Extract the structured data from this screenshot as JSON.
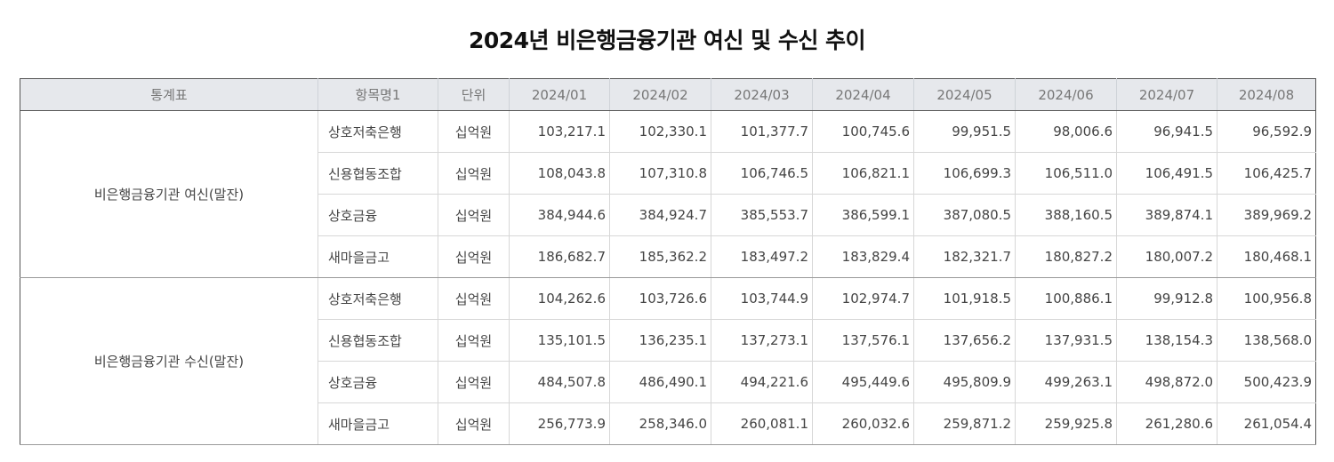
{
  "title": "2024년 비은행금융기관 여신 및 수신 추이",
  "headers": [
    "통계표",
    "항목명1",
    "단위",
    "2024/01",
    "2024/02",
    "2024/03",
    "2024/04",
    "2024/05",
    "2024/06",
    "2024/07",
    "2024/08"
  ],
  "groups": [
    {
      "label": "비은행금융기관 여신(말잔)",
      "rows": [
        {
          "item": "상호저축은행",
          "unit": "십억원",
          "values": [
            "103,217.1",
            "102,330.1",
            "101,377.7",
            "100,745.6",
            "99,951.5",
            "98,006.6",
            "96,941.5",
            "96,592.9"
          ]
        },
        {
          "item": "신용협동조합",
          "unit": "십억원",
          "values": [
            "108,043.8",
            "107,310.8",
            "106,746.5",
            "106,821.1",
            "106,699.3",
            "106,511.0",
            "106,491.5",
            "106,425.7"
          ]
        },
        {
          "item": "상호금융",
          "unit": "십억원",
          "values": [
            "384,944.6",
            "384,924.7",
            "385,553.7",
            "386,599.1",
            "387,080.5",
            "388,160.5",
            "389,874.1",
            "389,969.2"
          ]
        },
        {
          "item": "새마을금고",
          "unit": "십억원",
          "values": [
            "186,682.7",
            "185,362.2",
            "183,497.2",
            "183,829.4",
            "182,321.7",
            "180,827.2",
            "180,007.2",
            "180,468.1"
          ]
        }
      ]
    },
    {
      "label": "비은행금융기관 수신(말잔)",
      "rows": [
        {
          "item": "상호저축은행",
          "unit": "십억원",
          "values": [
            "104,262.6",
            "103,726.6",
            "103,744.9",
            "102,974.7",
            "101,918.5",
            "100,886.1",
            "99,912.8",
            "100,956.8"
          ]
        },
        {
          "item": "신용협동조합",
          "unit": "십억원",
          "values": [
            "135,101.5",
            "136,235.1",
            "137,273.1",
            "137,576.1",
            "137,656.2",
            "137,931.5",
            "138,154.3",
            "138,568.0"
          ]
        },
        {
          "item": "상호금융",
          "unit": "십억원",
          "values": [
            "484,507.8",
            "486,490.1",
            "494,221.6",
            "495,449.6",
            "495,809.9",
            "499,263.1",
            "498,872.0",
            "500,423.9"
          ]
        },
        {
          "item": "새마을금고",
          "unit": "십억원",
          "values": [
            "256,773.9",
            "258,346.0",
            "260,081.1",
            "260,032.6",
            "259,871.2",
            "259,925.8",
            "261,280.6",
            "261,054.4"
          ]
        }
      ]
    }
  ]
}
